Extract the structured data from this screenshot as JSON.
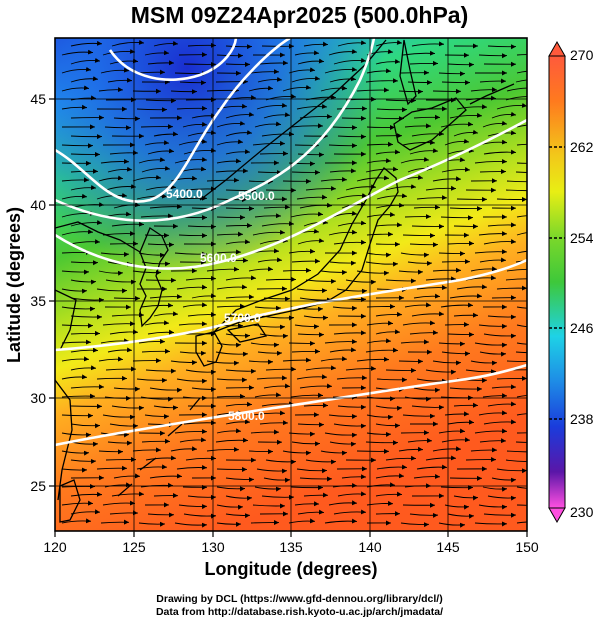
{
  "title": "MSM 09Z24Apr2025 (500.0hPa)",
  "map": {
    "xlabel": "Longitude (degrees)",
    "ylabel": "Latitude  (degrees)",
    "xlim": [
      120,
      150
    ],
    "ylim": [
      22.5,
      48
    ],
    "xticks": [
      "120",
      "125",
      "130",
      "135",
      "140",
      "145",
      "150"
    ],
    "yticks": [
      "25",
      "30",
      "35",
      "40",
      "45"
    ],
    "grid": true,
    "field": "temperature",
    "contour_labels": [
      "5400.0",
      "5500.0",
      "5600.0",
      "5700.0",
      "5800.0"
    ]
  },
  "colorbar": {
    "ticks": [
      "270",
      "262",
      "254",
      "246",
      "238",
      "230"
    ],
    "range": [
      230,
      270
    ],
    "colors": {
      "max": "#ff5a3c",
      "warm": "#ff7a1e",
      "yellow": "#e8ee14",
      "green": "#3ec83a",
      "cyan": "#1ed2e6",
      "blue": "#1a3cdc",
      "violet": "#5a16a8",
      "min": "#ff50e0"
    }
  },
  "credits": {
    "line1": "Drawing by DCL (https://www.gfd-dennou.org/library/dcl/)",
    "line2": "Data from http://database.rish.kyoto-u.ac.jp/arch/jmadata/"
  }
}
